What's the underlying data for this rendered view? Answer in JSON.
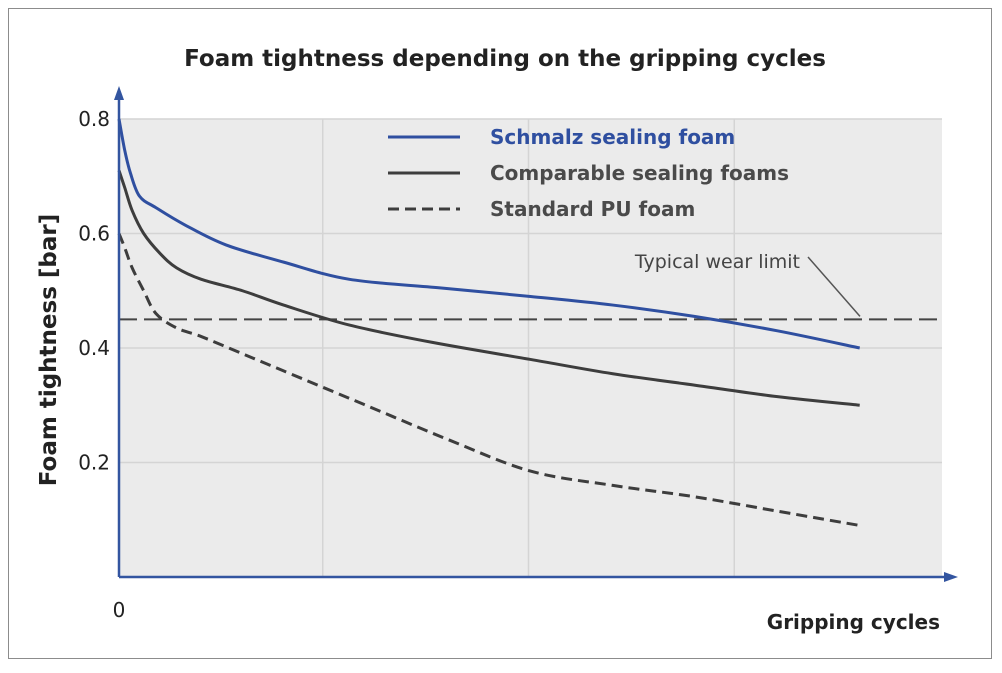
{
  "chart_data": {
    "type": "line",
    "title": "Foam tightness depending on the gripping cycles",
    "xlabel": "Gripping cycles",
    "ylabel": "Foam tightness [bar]",
    "x_tick_labels": [
      "0"
    ],
    "xlim": [
      0,
      1.0
    ],
    "ylim": [
      0,
      0.8
    ],
    "yticks": [
      0.2,
      0.4,
      0.6,
      0.8
    ],
    "ytick_labels": [
      "0.2",
      "0.4",
      "0.6",
      "0.8"
    ],
    "grid": true,
    "legend_position": "top",
    "series": [
      {
        "name": "Schmalz sealing foam",
        "color": "#2f4fa0",
        "style": "solid",
        "x": [
          0,
          0.007,
          0.014,
          0.025,
          0.045,
          0.08,
          0.13,
          0.2,
          0.28,
          0.39,
          0.5,
          0.6,
          0.7,
          0.8,
          0.9
        ],
        "y": [
          0.8,
          0.745,
          0.705,
          0.665,
          0.645,
          0.615,
          0.58,
          0.55,
          0.52,
          0.505,
          0.49,
          0.475,
          0.455,
          0.43,
          0.4
        ]
      },
      {
        "name": "Comparable sealing foams",
        "color": "#3d3d3d",
        "style": "solid",
        "x": [
          0,
          0.007,
          0.016,
          0.03,
          0.05,
          0.07,
          0.1,
          0.15,
          0.2,
          0.28,
          0.38,
          0.5,
          0.6,
          0.7,
          0.8,
          0.9
        ],
        "y": [
          0.71,
          0.68,
          0.64,
          0.6,
          0.565,
          0.54,
          0.52,
          0.5,
          0.475,
          0.44,
          0.41,
          0.38,
          0.355,
          0.335,
          0.315,
          0.3
        ]
      },
      {
        "name": "Standard PU foam",
        "color": "#3d3d3d",
        "style": "dashed",
        "x": [
          0,
          0.007,
          0.016,
          0.03,
          0.045,
          0.07,
          0.1,
          0.15,
          0.2,
          0.3,
          0.4,
          0.5,
          0.6,
          0.7,
          0.8,
          0.9
        ],
        "y": [
          0.6,
          0.575,
          0.54,
          0.5,
          0.46,
          0.435,
          0.42,
          0.39,
          0.36,
          0.3,
          0.24,
          0.185,
          0.16,
          0.14,
          0.115,
          0.09
        ]
      }
    ],
    "reference_lines": [
      {
        "label": "Typical wear limit",
        "y": 0.45,
        "color": "#444444",
        "style": "dashed"
      }
    ],
    "colors": {
      "plot_background": "#ebebeb",
      "axis": "#3355a0",
      "grid": "#d4d4d4"
    }
  }
}
